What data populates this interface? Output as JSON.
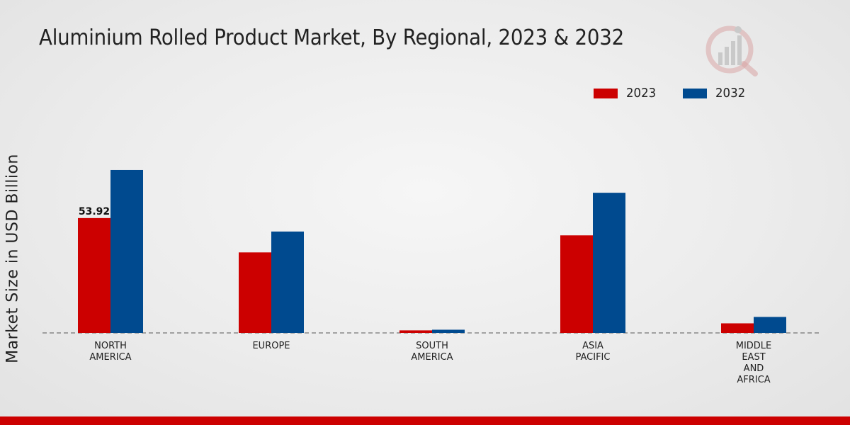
{
  "chart_data": {
    "type": "bar",
    "title": "Aluminium Rolled Product Market, By Regional, 2023 & 2032",
    "ylabel": "Market Size in USD Billion",
    "xlabel": "",
    "categories": [
      [
        "NORTH",
        "AMERICA"
      ],
      [
        "EUROPE"
      ],
      [
        "SOUTH",
        "AMERICA"
      ],
      [
        "ASIA",
        "PACIFIC"
      ],
      [
        "MIDDLE",
        "EAST",
        "AND",
        "AFRICA"
      ]
    ],
    "series": [
      {
        "name": "2023",
        "color": "#cc0000",
        "values": [
          53.92,
          37.8,
          1.2,
          45.8,
          4.5
        ]
      },
      {
        "name": "2032",
        "color": "#004a8f",
        "values": [
          76.5,
          47.6,
          1.5,
          65.8,
          7.5
        ]
      }
    ],
    "data_labels": [
      {
        "series": 0,
        "index": 0,
        "text": "53.92"
      }
    ],
    "ylim": [
      0,
      100
    ],
    "grid": false,
    "legend": "top-right"
  }
}
